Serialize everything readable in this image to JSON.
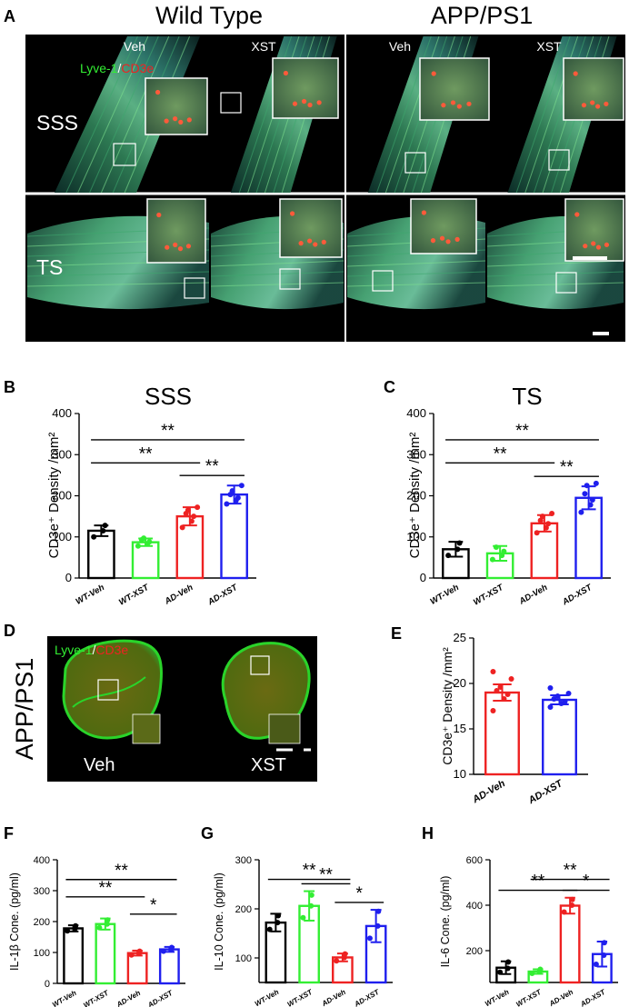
{
  "panelA": {
    "letter": "A",
    "group_wt": "Wild Type",
    "group_ad": "APP/PS1",
    "col_labels": [
      "Veh",
      "XST",
      "Veh",
      "XST"
    ],
    "row_labels": [
      "SSS",
      "TS"
    ],
    "stain_green": "Lyve-1",
    "stain_sep": "/",
    "stain_red": "CD3e"
  },
  "panelD": {
    "letter": "D",
    "side_label": "APP/PS1",
    "stain_green": "Lyve-1",
    "stain_sep": "/",
    "stain_red": "CD3e",
    "labels": [
      "Veh",
      "XST"
    ]
  },
  "colors": {
    "wt_veh": "#000000",
    "wt_xst": "#33ee33",
    "ad_veh": "#ee2222",
    "ad_xst": "#1f1fee",
    "lyve": "#33ee33",
    "cd3e": "#ee2222"
  },
  "chart_data": [
    {
      "id": "B",
      "letter": "B",
      "type": "bar",
      "title": "SSS",
      "ylabel": "CD3e⁺ Density  /mm²",
      "categories": [
        "WT-Veh",
        "WT-XST",
        "AD-Veh",
        "AD-XST"
      ],
      "values": [
        115,
        87,
        150,
        203
      ],
      "errors": [
        13,
        9,
        22,
        22
      ],
      "points": [
        [
          100,
          115,
          128
        ],
        [
          78,
          83,
          88,
          93,
          97
        ],
        [
          123,
          138,
          150,
          157,
          165,
          172
        ],
        [
          180,
          188,
          195,
          203,
          212,
          225
        ]
      ],
      "ylim": [
        0,
        400
      ],
      "yticks": [
        0,
        100,
        200,
        300,
        400
      ],
      "sig": [
        {
          "from": 0,
          "to": 3,
          "label": "**"
        },
        {
          "from": 0,
          "to": 2,
          "label": "**"
        },
        {
          "from": 2,
          "to": 3,
          "label": "**"
        }
      ]
    },
    {
      "id": "C",
      "letter": "C",
      "type": "bar",
      "title": "TS",
      "ylabel": "CD3e⁺ Density /mm²",
      "categories": [
        "WT-Veh",
        "WT-XST",
        "AD-Veh",
        "AD-XST"
      ],
      "values": [
        70,
        60,
        133,
        195
      ],
      "errors": [
        18,
        18,
        20,
        28
      ],
      "points": [
        [
          55,
          70,
          85
        ],
        [
          45,
          55,
          65,
          75
        ],
        [
          110,
          122,
          132,
          140,
          150,
          157
        ],
        [
          160,
          178,
          190,
          205,
          225,
          230
        ]
      ],
      "ylim": [
        0,
        400
      ],
      "yticks": [
        0,
        100,
        200,
        300,
        400
      ],
      "sig": [
        {
          "from": 0,
          "to": 3,
          "label": "**"
        },
        {
          "from": 0,
          "to": 2,
          "label": "**"
        },
        {
          "from": 2,
          "to": 3,
          "label": "**"
        }
      ]
    },
    {
      "id": "E",
      "letter": "E",
      "type": "bar",
      "title": "",
      "ylabel": "CD3e⁺ Density /mm²",
      "categories": [
        "AD-Veh",
        "AD-XST"
      ],
      "values": [
        19,
        18.2
      ],
      "errors": [
        0.9,
        0.5
      ],
      "points": [
        [
          17,
          18.3,
          18.8,
          19.2,
          19.6,
          20.5,
          21.3
        ],
        [
          17.4,
          17.8,
          18,
          18.3,
          18.6,
          18.9,
          19.5
        ]
      ],
      "ylim": [
        10,
        25
      ],
      "yticks": [
        10,
        15,
        20,
        25
      ],
      "sig": []
    },
    {
      "id": "F",
      "letter": "F",
      "type": "bar",
      "title": "",
      "ylabel": "IL-1β Cone. (pg/ml)",
      "categories": [
        "WT-Veh",
        "WT-XST",
        "AD-Veh",
        "AD-XST"
      ],
      "values": [
        178,
        192,
        98,
        110
      ],
      "errors": [
        10,
        18,
        8,
        8
      ],
      "points": [
        [
          170,
          178,
          186
        ],
        [
          180,
          192,
          205
        ],
        [
          92,
          98,
          104
        ],
        [
          104,
          110,
          116
        ]
      ],
      "ylim": [
        0,
        400
      ],
      "yticks": [
        0,
        100,
        200,
        300,
        400
      ],
      "sig": [
        {
          "from": 0,
          "to": 3,
          "label": "**"
        },
        {
          "from": 0,
          "to": 2,
          "label": "**"
        },
        {
          "from": 2,
          "to": 3,
          "label": "*"
        }
      ]
    },
    {
      "id": "G",
      "letter": "G",
      "type": "bar",
      "title": "",
      "ylabel": "IL-10 Cone. (pg/ml)",
      "categories": [
        "WT-Veh",
        "WT-XST",
        "AD-Veh",
        "AD-XST"
      ],
      "values": [
        172,
        206,
        101,
        165
      ],
      "errors": [
        18,
        30,
        8,
        33
      ],
      "points": [
        [
          158,
          172,
          186
        ],
        [
          182,
          206,
          228
        ],
        [
          94,
          101,
          108
        ],
        [
          140,
          165,
          195
        ]
      ],
      "ylim": [
        50,
        300
      ],
      "yticks": [
        100,
        200,
        300
      ],
      "sig": [
        {
          "from": 0,
          "to": 2,
          "label": "**"
        },
        {
          "from": 1,
          "to": 2,
          "label": "**"
        },
        {
          "from": 2,
          "to": 3,
          "label": "*"
        }
      ]
    },
    {
      "id": "H",
      "letter": "H",
      "type": "bar",
      "title": "",
      "ylabel": "IL-6 Cone. (pg/ml)",
      "categories": [
        "WT-Veh",
        "WT-XST",
        "AD-Veh",
        "AD-XST"
      ],
      "values": [
        125,
        108,
        398,
        185
      ],
      "errors": [
        28,
        10,
        35,
        55
      ],
      "points": [
        [
          105,
          122,
          150
        ],
        [
          100,
          110,
          118
        ],
        [
          370,
          400,
          425
        ],
        [
          140,
          180,
          235
        ]
      ],
      "ylim": [
        60,
        600
      ],
      "yticks": [
        200,
        400,
        600
      ],
      "sig": [
        {
          "from": 1,
          "to": 3,
          "label": "**"
        },
        {
          "from": 0,
          "to": 2,
          "label": "**"
        },
        {
          "from": 2,
          "to": 3,
          "label": "*"
        }
      ]
    }
  ]
}
